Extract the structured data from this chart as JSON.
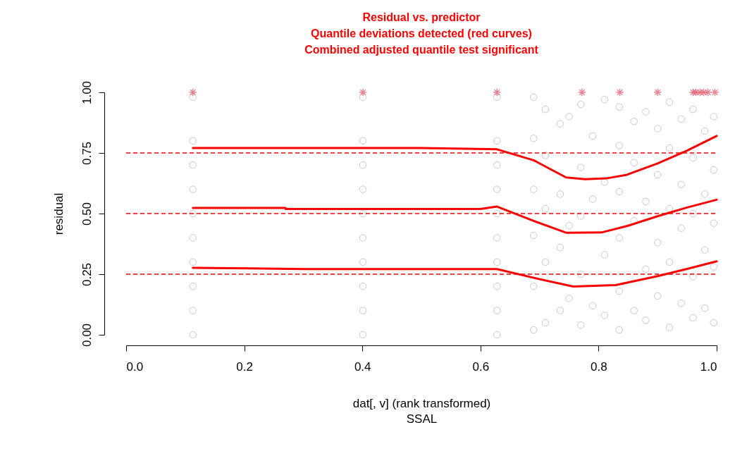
{
  "chart_data": {
    "type": "scatter",
    "title": "Residual vs. predictor",
    "subtitle": "Quantile deviations detected (red curves)\nCombined adjusted quantile test significant",
    "xlabel": "dat[, v] (rank transformed)\nSSAL",
    "ylabel": "residual",
    "xlim": [
      0,
      1
    ],
    "ylim": [
      0,
      1
    ],
    "xticks": [
      {
        "value": 0,
        "label": "0.0"
      },
      0.2,
      0.4,
      0.6,
      0.8,
      {
        "value": 1,
        "label": "1.0"
      }
    ],
    "yticks": [
      {
        "value": 0,
        "label": "0.00"
      },
      0.25,
      {
        "value": 0.5,
        "label": "0.50"
      },
      0.75,
      {
        "value": 1,
        "label": "1.00"
      }
    ],
    "grid": false,
    "series": [
      {
        "marker": "circle",
        "color": "#000000",
        "x": [
          0.113,
          0.113,
          0.113,
          0.113,
          0.113,
          0.113,
          0.113,
          0.113,
          0.113,
          0.113,
          0.401,
          0.401,
          0.401,
          0.401,
          0.401,
          0.401,
          0.401,
          0.401,
          0.401,
          0.401,
          0.628,
          0.628,
          0.628,
          0.628,
          0.628,
          0.628,
          0.628,
          0.628,
          0.628,
          0.628,
          0.69,
          0.69,
          0.69,
          0.69,
          0.69,
          0.69,
          0.71,
          0.71,
          0.71,
          0.71,
          0.71,
          0.735,
          0.735,
          0.735,
          0.735,
          0.75,
          0.75,
          0.75,
          0.77,
          0.77,
          0.77,
          0.77,
          0.77,
          0.79,
          0.79,
          0.79,
          0.81,
          0.81,
          0.81,
          0.81,
          0.835,
          0.835,
          0.835,
          0.835,
          0.835,
          0.835,
          0.86,
          0.86,
          0.86,
          0.86,
          0.88,
          0.88,
          0.88,
          0.88,
          0.9,
          0.9,
          0.9,
          0.9,
          0.92,
          0.92,
          0.92,
          0.92,
          0.92,
          0.94,
          0.94,
          0.94,
          0.94,
          0.96,
          0.96,
          0.96,
          0.96,
          0.96,
          0.98,
          0.98,
          0.98,
          0.98,
          0.995,
          0.995,
          0.995,
          0.995,
          0.995
        ],
        "values": [
          0,
          0.1,
          0.2,
          0.3,
          0.4,
          0.5,
          0.6,
          0.7,
          0.8,
          0.98,
          0,
          0.1,
          0.2,
          0.3,
          0.4,
          0.5,
          0.6,
          0.7,
          0.8,
          0.98,
          0,
          0.1,
          0.2,
          0.3,
          0.4,
          0.5,
          0.6,
          0.7,
          0.8,
          0.98,
          0.02,
          0.2,
          0.41,
          0.6,
          0.81,
          0.98,
          0.05,
          0.3,
          0.52,
          0.74,
          0.93,
          0.1,
          0.36,
          0.58,
          0.87,
          0.15,
          0.45,
          0.9,
          0.04,
          0.25,
          0.49,
          0.69,
          0.95,
          0.12,
          0.56,
          0.82,
          0.08,
          0.33,
          0.63,
          0.97,
          0.02,
          0.18,
          0.4,
          0.59,
          0.78,
          0.94,
          0.1,
          0.47,
          0.71,
          0.88,
          0.06,
          0.27,
          0.55,
          0.92,
          0.16,
          0.38,
          0.66,
          0.85,
          0.03,
          0.3,
          0.52,
          0.77,
          0.96,
          0.13,
          0.44,
          0.62,
          0.89,
          0.07,
          0.24,
          0.5,
          0.73,
          0.93,
          0.11,
          0.35,
          0.58,
          0.84,
          0.05,
          0.28,
          0.46,
          0.68,
          0.9
        ]
      },
      {
        "marker": "cross",
        "color": "#df536b",
        "x": [
          0.113,
          0.401,
          0.628,
          0.772,
          0.836,
          0.9,
          0.96,
          0.965,
          0.972,
          0.978,
          0.985,
          0.997
        ],
        "values": [
          1,
          1,
          1,
          1,
          1,
          1,
          1,
          1,
          1,
          1,
          1,
          1
        ]
      },
      {
        "type": "line",
        "color": "#ff0000",
        "x": [
          0.113,
          0.3,
          0.5,
          0.628,
          0.69,
          0.745,
          0.777,
          0.813,
          0.848,
          0.9,
          0.95,
          1.0
        ],
        "values": [
          0.77,
          0.77,
          0.77,
          0.765,
          0.72,
          0.649,
          0.642,
          0.645,
          0.66,
          0.707,
          0.76,
          0.82
        ]
      },
      {
        "type": "line",
        "color": "#ff0000",
        "x": [
          0.113,
          0.27,
          0.27,
          0.6,
          0.628,
          0.69,
          0.745,
          0.805,
          0.85,
          0.9,
          0.95,
          1.0
        ],
        "values": [
          0.523,
          0.523,
          0.519,
          0.519,
          0.529,
          0.47,
          0.421,
          0.422,
          0.45,
          0.489,
          0.525,
          0.557
        ]
      },
      {
        "type": "line",
        "color": "#ff0000",
        "x": [
          0.113,
          0.207,
          0.303,
          0.628,
          0.69,
          0.757,
          0.829,
          0.9,
          0.95,
          1.0
        ],
        "values": [
          0.276,
          0.274,
          0.271,
          0.271,
          0.235,
          0.199,
          0.205,
          0.242,
          0.272,
          0.303
        ]
      }
    ],
    "ref_lines": [
      {
        "axis": "y",
        "value": 0.25,
        "color": "#ff0000",
        "line_style": "dashed"
      },
      {
        "axis": "y",
        "value": 0.5,
        "color": "#ff0000",
        "line_style": "dashed"
      },
      {
        "axis": "y",
        "value": 0.75,
        "color": "#ff0000",
        "line_style": "dashed"
      }
    ]
  }
}
